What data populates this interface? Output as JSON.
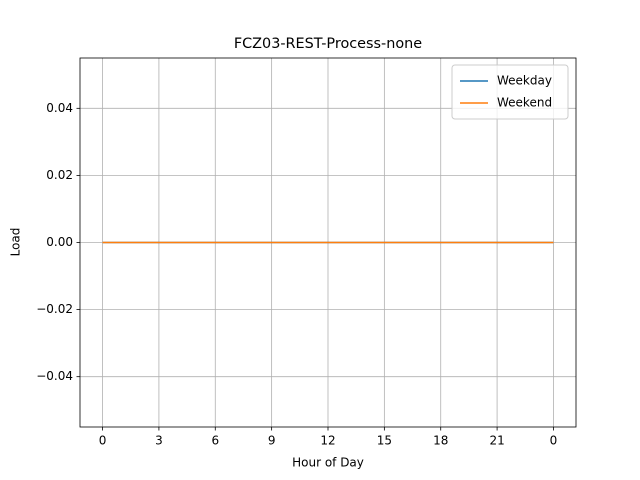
{
  "chart_data": {
    "type": "line",
    "title": "FCZ03-REST-Process-none",
    "x_label": "Hour of Day",
    "y_label": "Load",
    "x": [
      0,
      1,
      2,
      3,
      4,
      5,
      6,
      7,
      8,
      9,
      10,
      11,
      12,
      13,
      14,
      15,
      16,
      17,
      18,
      19,
      20,
      21,
      22,
      23,
      24
    ],
    "series": [
      {
        "name": "Weekday",
        "color": "#1f77b4",
        "values": [
          0,
          0,
          0,
          0,
          0,
          0,
          0,
          0,
          0,
          0,
          0,
          0,
          0,
          0,
          0,
          0,
          0,
          0,
          0,
          0,
          0,
          0,
          0,
          0,
          0
        ]
      },
      {
        "name": "Weekend",
        "color": "#ff7f0e",
        "values": [
          0,
          0,
          0,
          0,
          0,
          0,
          0,
          0,
          0,
          0,
          0,
          0,
          0,
          0,
          0,
          0,
          0,
          0,
          0,
          0,
          0,
          0,
          0,
          0,
          0
        ]
      }
    ],
    "xlim": [
      -1.2,
      25.2
    ],
    "xticks": [
      0,
      3,
      6,
      9,
      12,
      15,
      18,
      21,
      {
        "value": 24,
        "label": "0"
      }
    ],
    "ylim": [
      -0.055,
      0.055
    ],
    "yticks": [
      {
        "value": -0.04,
        "label": "−0.04"
      },
      {
        "value": -0.02,
        "label": "−0.02"
      },
      {
        "value": 0,
        "label": "0.00"
      },
      0.02,
      0.04
    ],
    "grid": true,
    "legend": "upper right"
  }
}
